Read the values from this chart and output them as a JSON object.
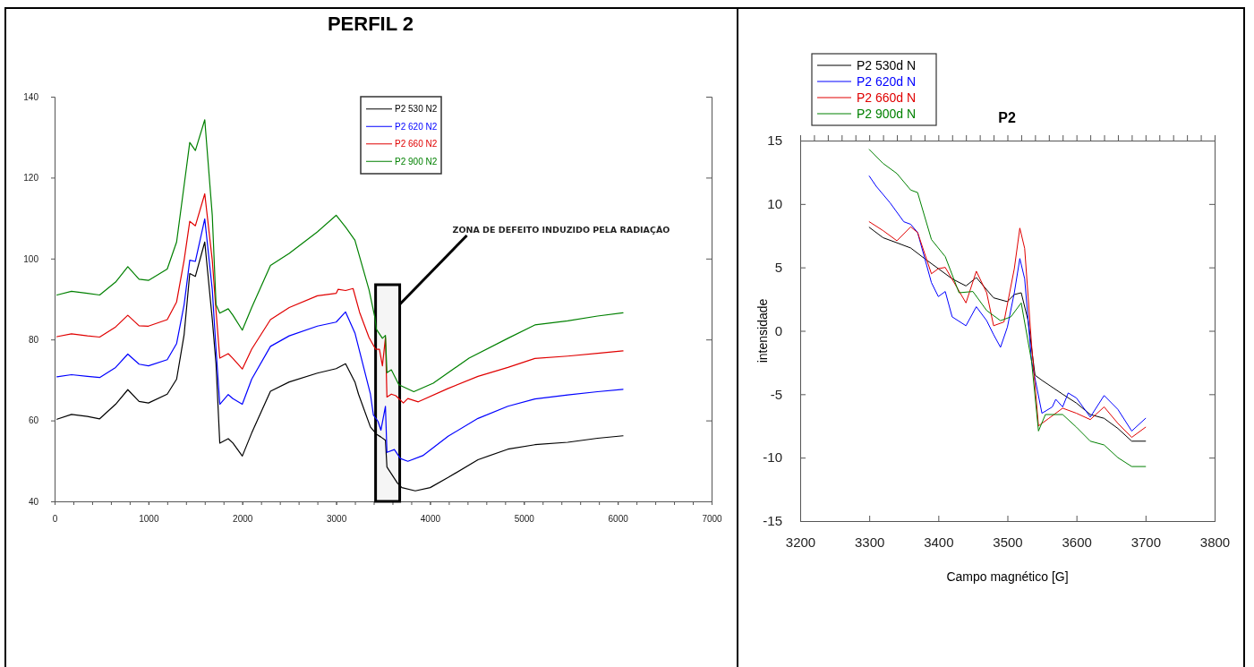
{
  "chart_data": [
    {
      "type": "line",
      "title": "PERFIL 2",
      "xlim": [
        0,
        7000
      ],
      "ylim": [
        40,
        140
      ],
      "xticks": [
        0,
        1000,
        2000,
        3000,
        4000,
        5000,
        6000,
        7000
      ],
      "yticks": [
        40,
        60,
        80,
        100,
        120,
        140
      ],
      "grid": false,
      "legend": "top",
      "line_style": "solid",
      "marker": "none",
      "bands": [
        {
          "axis": "x",
          "from": 3420,
          "to": 3677,
          "color": "#000000",
          "label": "ZONA DE DEFEITO INDUZIDO PELA RADIAÇÃO"
        }
      ],
      "series": [
        {
          "name": "P2 530 N2",
          "color": "#000000",
          "x": [
            25,
            180,
            350,
            480,
            650,
            780,
            900,
            1000,
            1200,
            1300,
            1380,
            1440,
            1500,
            1600,
            1680,
            1720,
            1760,
            1850,
            1900,
            2000,
            2100,
            2300,
            2500,
            2800,
            3000,
            3100,
            3200,
            3238,
            3365,
            3429,
            3477,
            3525,
            3541,
            3653,
            3700,
            3843,
            4002,
            4193,
            4511,
            4830,
            5117,
            5467,
            5785,
            6056
          ],
          "values": [
            60.3,
            61.5,
            61,
            60.4,
            64,
            67.6,
            64.7,
            64.3,
            66.5,
            70.2,
            81.2,
            96.3,
            95.6,
            104.1,
            85,
            73.9,
            54.4,
            55.5,
            54.4,
            51.2,
            56.9,
            67.2,
            69.5,
            71.7,
            72.8,
            74,
            69.5,
            66.5,
            58.4,
            56.6,
            55.9,
            55.1,
            48.5,
            44.5,
            43.4,
            42.6,
            43.4,
            45.9,
            50.3,
            52.9,
            54,
            54.6,
            55.6,
            56.2
          ]
        },
        {
          "name": "P2 620 N2",
          "color": "#0000ff",
          "x": [
            25,
            180,
            350,
            480,
            650,
            780,
            900,
            1000,
            1200,
            1300,
            1380,
            1440,
            1500,
            1600,
            1680,
            1720,
            1760,
            1850,
            1900,
            2000,
            2100,
            2300,
            2500,
            2800,
            3000,
            3100,
            3200,
            3365,
            3397,
            3445,
            3477,
            3525,
            3541,
            3620,
            3684,
            3764,
            3923,
            4193,
            4511,
            4830,
            5117,
            5467,
            5785,
            6056
          ],
          "values": [
            70.8,
            71.3,
            70.9,
            70.6,
            73.1,
            76.4,
            73.9,
            73.5,
            75,
            79,
            88.6,
            99.6,
            99.3,
            109.8,
            92.3,
            77.6,
            64,
            66.4,
            65.4,
            64,
            70.2,
            78.3,
            80.9,
            83.3,
            84.3,
            86.8,
            81.6,
            66.5,
            61.3,
            59.8,
            57.6,
            63.5,
            52.1,
            52.8,
            50.6,
            49.9,
            51.3,
            56.1,
            60.5,
            63.5,
            65.3,
            66.3,
            67.1,
            67.7
          ]
        },
        {
          "name": "P2 660 N2",
          "color": "#e00000",
          "x": [
            25,
            180,
            350,
            480,
            650,
            780,
            900,
            1000,
            1200,
            1300,
            1380,
            1440,
            1500,
            1600,
            1680,
            1720,
            1760,
            1850,
            1900,
            2000,
            2100,
            2300,
            2500,
            2800,
            3000,
            3020,
            3100,
            3180,
            3250,
            3350,
            3420,
            3461,
            3493,
            3525,
            3541,
            3588,
            3636,
            3716,
            3764,
            3875,
            4193,
            4511,
            4830,
            5117,
            5467,
            5785,
            6056
          ],
          "values": [
            80.7,
            81.4,
            80.9,
            80.6,
            83.1,
            86,
            83.4,
            83.3,
            84.9,
            89.3,
            99.6,
            109.2,
            108.1,
            116,
            99.6,
            87.1,
            75.4,
            76.5,
            75.3,
            72.7,
            77.6,
            84.9,
            87.9,
            90.8,
            91.4,
            92.4,
            92.1,
            92.6,
            86.7,
            80.5,
            77.6,
            77.6,
            73.5,
            80.5,
            65.8,
            66.5,
            66.1,
            64.3,
            65.4,
            64.6,
            67.9,
            70.9,
            73.1,
            75.3,
            75.9,
            76.6,
            77.2
          ]
        },
        {
          "name": "P2 900 N2",
          "color": "#008000",
          "x": [
            25,
            180,
            350,
            480,
            650,
            780,
            900,
            1000,
            1200,
            1300,
            1380,
            1440,
            1500,
            1600,
            1680,
            1720,
            1760,
            1850,
            1900,
            2000,
            2100,
            2300,
            2500,
            2800,
            3000,
            3100,
            3200,
            3350,
            3413,
            3429,
            3493,
            3525,
            3541,
            3588,
            3668,
            3827,
            4034,
            4416,
            4830,
            5117,
            5467,
            5785,
            6056
          ],
          "values": [
            91,
            91.9,
            91.4,
            91,
            94.2,
            98,
            94.9,
            94.6,
            97.4,
            104.1,
            118.1,
            128.7,
            126.7,
            134.3,
            110.7,
            88.6,
            86.5,
            87.6,
            86,
            82.3,
            87.9,
            98.3,
            101.3,
            106.6,
            110.7,
            107.8,
            104.5,
            92.3,
            85.4,
            82.5,
            80.3,
            81,
            71.8,
            72.5,
            68.8,
            67.1,
            69.2,
            75.4,
            80.3,
            83.6,
            84.6,
            85.8,
            86.6
          ]
        }
      ]
    },
    {
      "type": "line",
      "title": "P2",
      "xlabel": "Campo magnético [G]",
      "ylabel": "intensidade",
      "xlim": [
        3200,
        3800
      ],
      "ylim": [
        -15,
        15
      ],
      "xticks": [
        3200,
        3300,
        3400,
        3500,
        3600,
        3700,
        3800
      ],
      "yticks": [
        15,
        10,
        5,
        0,
        -5,
        -10,
        -15
      ],
      "grid": false,
      "legend": "top left",
      "line_style": "solid",
      "marker": "none",
      "series": [
        {
          "name": "P2 530d N",
          "color": "#000000",
          "x": [
            3300,
            3320,
            3340,
            3360,
            3380,
            3400,
            3420,
            3440,
            3455,
            3480,
            3500,
            3510,
            3520,
            3530,
            3540,
            3550,
            3580,
            3600,
            3620,
            3640,
            3660,
            3680,
            3700
          ],
          "values": [
            8.16,
            7.34,
            6.94,
            6.53,
            5.7,
            4.9,
            4.1,
            3.54,
            4.2,
            2.6,
            2.3,
            2.86,
            3,
            0.8,
            -3.5,
            -3.9,
            -5,
            -5.7,
            -6.6,
            -6.9,
            -7.7,
            -8.7,
            -8.7
          ]
        },
        {
          "name": "P2 620d N",
          "color": "#0000ff",
          "x": [
            3300,
            3310,
            3330,
            3350,
            3360,
            3370,
            3390,
            3400,
            3410,
            3420,
            3440,
            3455,
            3470,
            3480,
            3490,
            3500,
            3510,
            3518,
            3525,
            3535,
            3550,
            3565,
            3570,
            3580,
            3588,
            3600,
            3620,
            3640,
            3660,
            3680,
            3700
          ],
          "values": [
            12.2,
            11.4,
            10.1,
            8.6,
            8.4,
            7.75,
            3.8,
            2.7,
            3.1,
            1.1,
            0.4,
            1.9,
            0.8,
            -0.3,
            -1.3,
            0.3,
            3,
            5.7,
            4.1,
            -2.4,
            -6.5,
            -6,
            -5.4,
            -6,
            -4.9,
            -5.3,
            -6.8,
            -5.1,
            -6.2,
            -7.9,
            -6.9
          ]
        },
        {
          "name": "P2 660d N",
          "color": "#e00000",
          "x": [
            3300,
            3320,
            3340,
            3360,
            3370,
            3390,
            3400,
            3410,
            3440,
            3455,
            3470,
            3480,
            3495,
            3510,
            3518,
            3525,
            3535,
            3545,
            3560,
            3580,
            3600,
            3620,
            3640,
            3660,
            3680,
            3700
          ],
          "values": [
            8.6,
            7.9,
            7.1,
            8.2,
            7.75,
            4.5,
            4.9,
            5,
            2.2,
            4.7,
            3,
            0.4,
            0.7,
            4.9,
            8.1,
            6.5,
            -1.1,
            -7.5,
            -6.9,
            -6.1,
            -6.5,
            -7,
            -6,
            -7.3,
            -8.4,
            -7.6
          ]
        },
        {
          "name": "P2 900d N",
          "color": "#008000",
          "x": [
            3300,
            3320,
            3340,
            3360,
            3370,
            3390,
            3410,
            3430,
            3450,
            3470,
            3490,
            3505,
            3520,
            3535,
            3545,
            3555,
            3580,
            3600,
            3620,
            3640,
            3660,
            3680,
            3700
          ],
          "values": [
            14.3,
            13.2,
            12.4,
            11.1,
            10.9,
            7.2,
            5.85,
            3,
            3.1,
            1.6,
            0.8,
            1.1,
            2.2,
            -2.4,
            -7.9,
            -6.6,
            -6.6,
            -7.6,
            -8.7,
            -9,
            -10,
            -10.7,
            -10.7
          ]
        }
      ]
    }
  ]
}
